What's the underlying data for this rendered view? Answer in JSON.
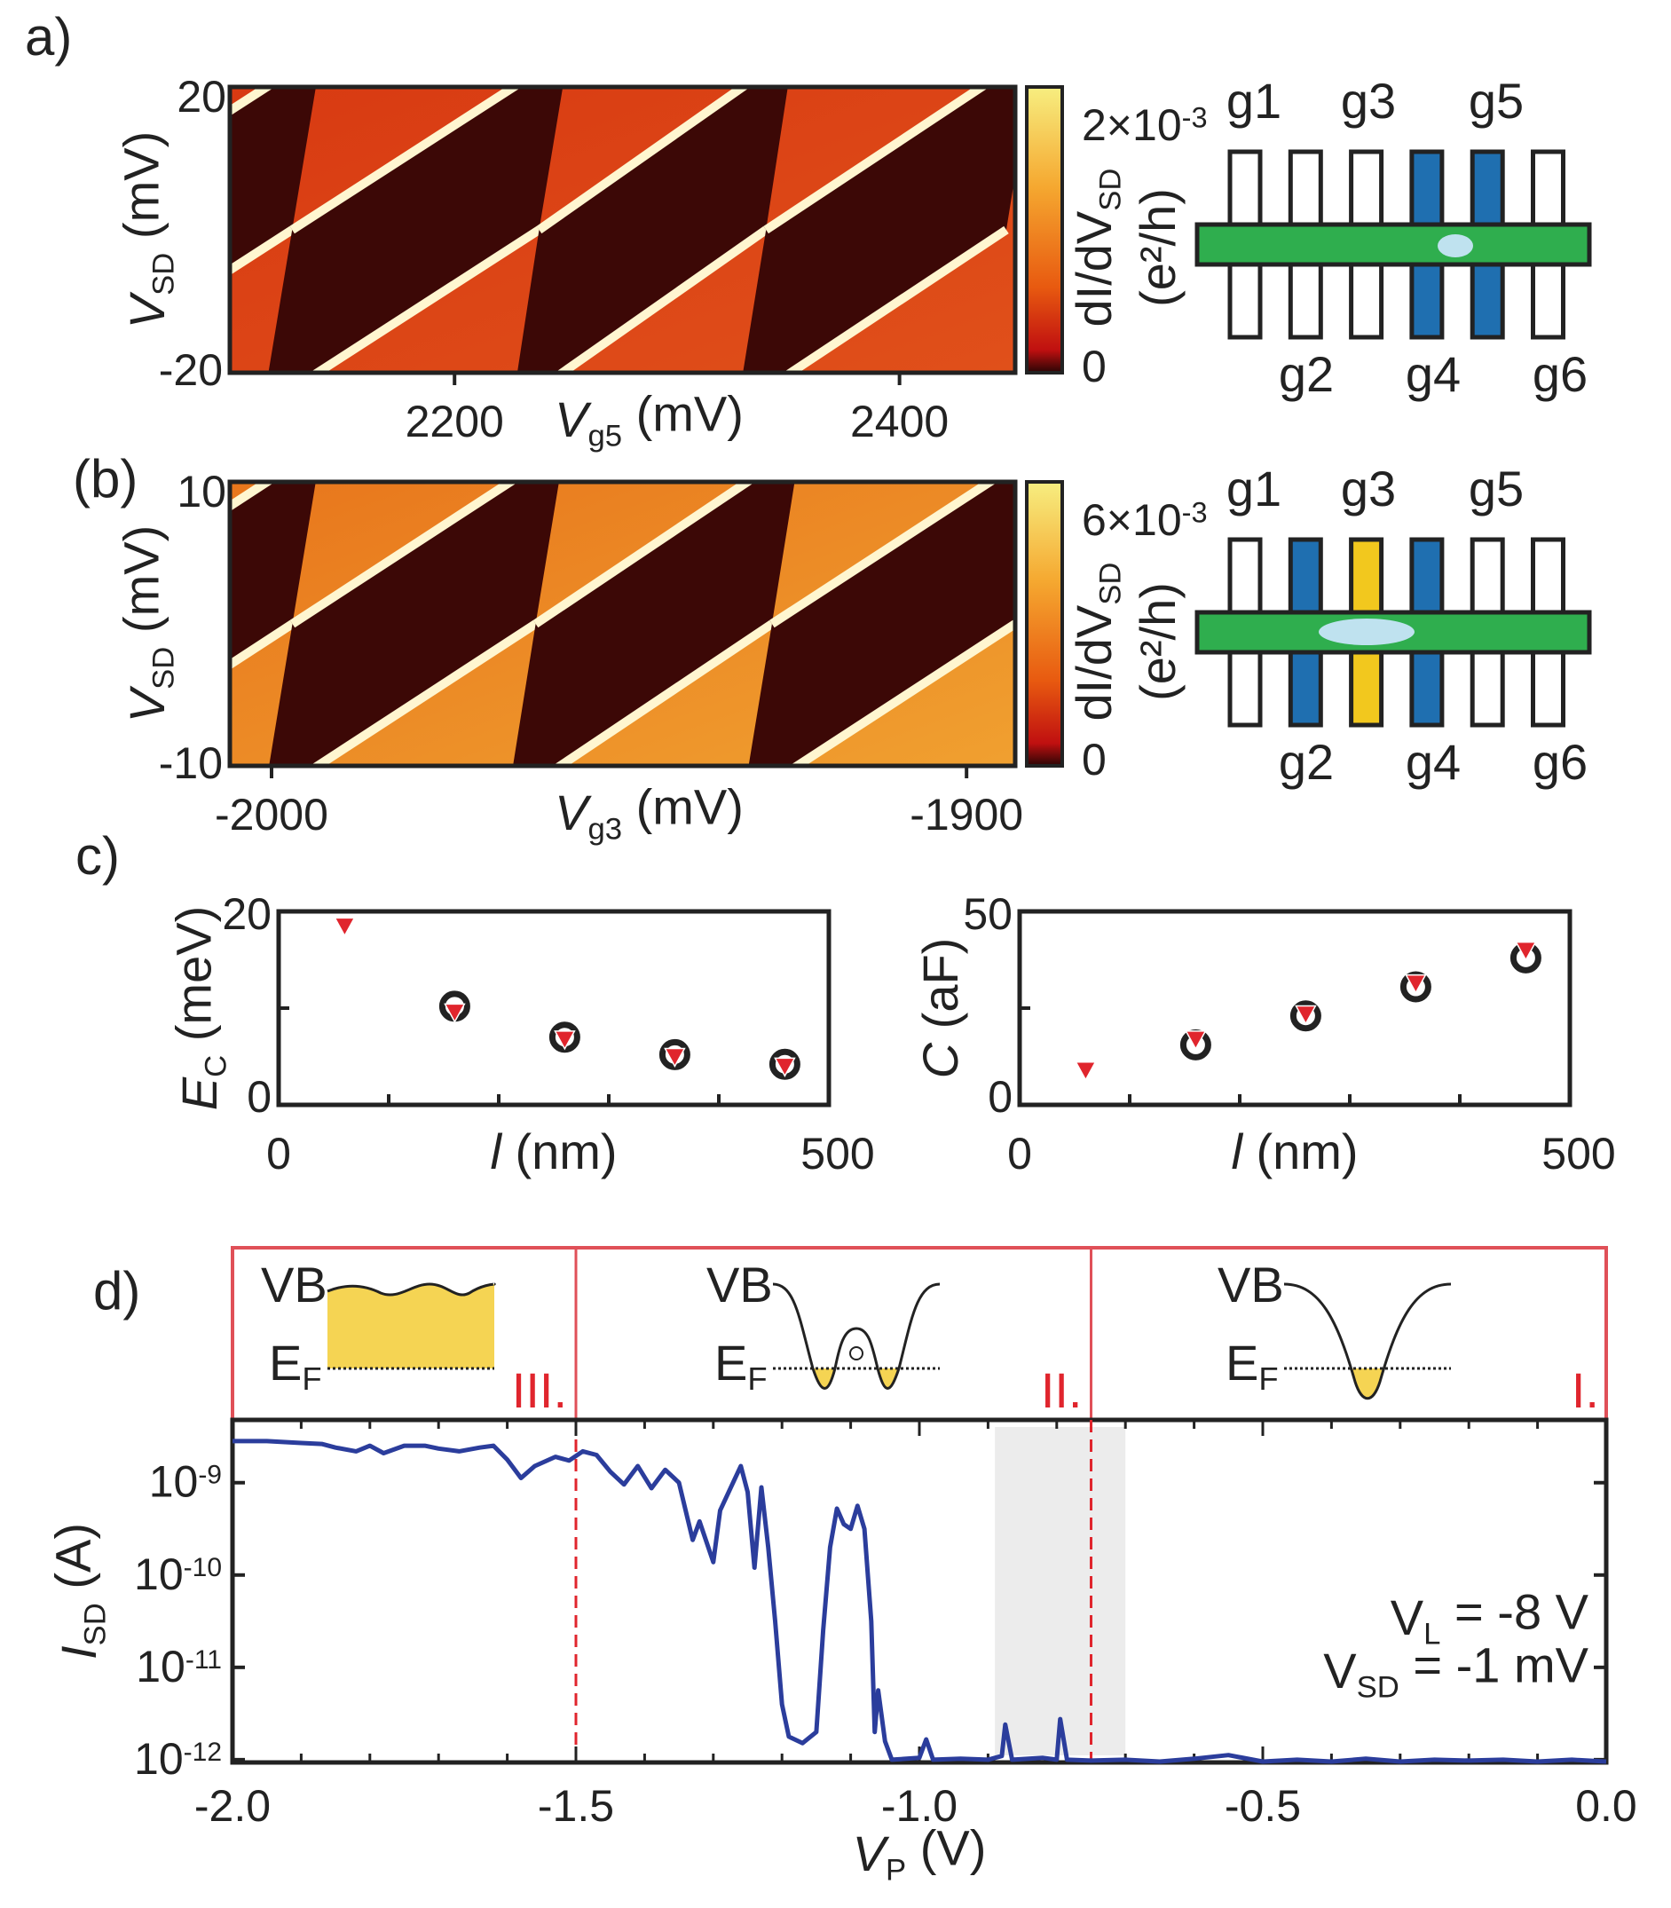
{
  "panels": {
    "a": "a)",
    "b": "(b)",
    "c": "c)",
    "d": "d)"
  },
  "chart_data": [
    {
      "id": "a",
      "type": "heatmap",
      "xlabel": {
        "main": "V",
        "sub": "g5",
        "unit": " (mV)"
      },
      "ylabel": {
        "main": "V",
        "sub": "SD",
        "unit": " (mV)"
      },
      "xlim": [
        2099,
        2452
      ],
      "ylim": [
        -20,
        20
      ],
      "xticks": [
        2200,
        2400
      ],
      "xtick_labels": [
        "2200",
        "2400"
      ],
      "yticks": [
        -20,
        20
      ],
      "ytick_labels": [
        "-20",
        "20"
      ],
      "degeneracy_points_mV": [
        2127,
        2238,
        2340,
        2448
      ],
      "colorbar": {
        "max_label": "2×10",
        "max_exp": "-3",
        "min_label": "0",
        "label_main": "dI/dV",
        "label_sub": "SD",
        "label_unit": "(e²/h)",
        "range": [
          0,
          0.002
        ]
      },
      "gates": {
        "labels_top": [
          "g1",
          "g3",
          "g5"
        ],
        "labels_bottom": [
          "g2",
          "g4",
          "g6"
        ],
        "active": {
          "g4": "#1f6fb0",
          "g5": "#1f6fb0"
        }
      }
    },
    {
      "id": "b",
      "type": "heatmap",
      "xlabel": {
        "main": "V",
        "sub": "g3",
        "unit": " (mV)"
      },
      "ylabel": {
        "main": "V",
        "sub": "SD",
        "unit": " (mV)"
      },
      "xlim": [
        -2006,
        -1893
      ],
      "ylim": [
        -10,
        10
      ],
      "xticks": [
        -2000,
        -1900
      ],
      "xtick_labels": [
        "-2000",
        "-1900"
      ],
      "yticks": [
        -10,
        10
      ],
      "ytick_labels": [
        "-10",
        "10"
      ],
      "degeneracy_points_mV": [
        -1997,
        -1962,
        -1928,
        -1893
      ],
      "colorbar": {
        "max_label": "6×10",
        "max_exp": "-3",
        "min_label": "0",
        "label_main": "dI/dV",
        "label_sub": "SD",
        "label_unit": "(e²/h)",
        "range": [
          0,
          0.006
        ]
      },
      "gates": {
        "labels_top": [
          "g1",
          "g3",
          "g5"
        ],
        "labels_bottom": [
          "g2",
          "g4",
          "g6"
        ],
        "active": {
          "g2": "#1f6fb0",
          "g3": "#f2c81e",
          "g4": "#1f6fb0"
        }
      }
    },
    {
      "id": "c-left",
      "type": "scatter",
      "xlabel": {
        "main": "l",
        "unit": " (nm)"
      },
      "ylabel": {
        "main": "E",
        "sub": "C",
        "unit": " (meV)"
      },
      "xlim": [
        0,
        500
      ],
      "ylim": [
        0,
        20
      ],
      "xtick_labels": [
        "0",
        "500"
      ],
      "ytick_labels": [
        "0",
        "20"
      ],
      "series": [
        {
          "name": "triangles",
          "marker": "triangle-down",
          "color": "#e0252d",
          "x": [
            60,
            160,
            260,
            360,
            460
          ],
          "y": [
            18.5,
            9.6,
            6.8,
            5.0,
            4.0
          ]
        },
        {
          "name": "circles",
          "marker": "circle",
          "color": "#222222",
          "x": [
            160,
            260,
            360,
            460
          ],
          "y": [
            10.2,
            7.0,
            5.2,
            4.2
          ]
        }
      ]
    },
    {
      "id": "c-right",
      "type": "scatter",
      "xlabel": {
        "main": "l",
        "unit": " (nm)"
      },
      "ylabel": {
        "main": "C",
        "unit": " (aF)"
      },
      "xlim": [
        0,
        500
      ],
      "ylim": [
        0,
        50
      ],
      "xtick_labels": [
        "0",
        "500"
      ],
      "ytick_labels": [
        "0",
        "50"
      ],
      "series": [
        {
          "name": "triangles",
          "marker": "triangle-down",
          "color": "#e0252d",
          "x": [
            60,
            160,
            260,
            360,
            460
          ],
          "y": [
            9,
            17,
            23.5,
            31.5,
            40
          ]
        },
        {
          "name": "circles",
          "marker": "circle",
          "color": "#222222",
          "x": [
            160,
            260,
            360,
            460
          ],
          "y": [
            15.5,
            23,
            30.5,
            38
          ]
        }
      ]
    },
    {
      "id": "d",
      "type": "line",
      "xlabel": {
        "main": "V",
        "sub": "P",
        "unit": " (V)"
      },
      "ylabel": {
        "main": "I",
        "sub": "SD",
        "unit": " (A)"
      },
      "xlim": [
        -2.0,
        0.0
      ],
      "ylim_log10": [
        -12.03,
        -8.32
      ],
      "xticks": [
        -2.0,
        -1.5,
        -1.0,
        -0.5,
        0.0
      ],
      "xtick_labels": [
        "-2.0",
        "-1.5",
        "-1.0",
        "-0.5",
        "0.0"
      ],
      "yticks_log10": [
        -9,
        -10,
        -11,
        -12
      ],
      "ytick_base": "10",
      "ytick_exps": [
        "-9",
        "-10",
        "-11",
        "-12"
      ],
      "dashed_lines": [
        -1.5,
        -0.75
      ],
      "shaded_region": [
        -0.89,
        -0.7
      ],
      "annotations": [
        {
          "main": "V",
          "sub": "L",
          "rest": " = -8 V"
        },
        {
          "main": "V",
          "sub": "SD",
          "rest": " = -1 mV"
        }
      ],
      "regions": [
        {
          "label": "III.",
          "vb": "VB",
          "ef": "E",
          "ef_sub": "F"
        },
        {
          "label": "II.",
          "vb": "VB",
          "ef": "E",
          "ef_sub": "F"
        },
        {
          "label": "I.",
          "vb": "VB",
          "ef": "E",
          "ef_sub": "F"
        }
      ],
      "line_color": "#2b3d9c",
      "series": [
        {
          "name": "I_SD",
          "points": [
            [
              -2.0,
              -8.55
            ],
            [
              -1.95,
              -8.55
            ],
            [
              -1.9,
              -8.57
            ],
            [
              -1.87,
              -8.58
            ],
            [
              -1.85,
              -8.62
            ],
            [
              -1.82,
              -8.66
            ],
            [
              -1.8,
              -8.6
            ],
            [
              -1.78,
              -8.68
            ],
            [
              -1.75,
              -8.6
            ],
            [
              -1.72,
              -8.6
            ],
            [
              -1.7,
              -8.63
            ],
            [
              -1.67,
              -8.66
            ],
            [
              -1.64,
              -8.62
            ],
            [
              -1.62,
              -8.6
            ],
            [
              -1.6,
              -8.75
            ],
            [
              -1.58,
              -8.95
            ],
            [
              -1.56,
              -8.82
            ],
            [
              -1.53,
              -8.72
            ],
            [
              -1.51,
              -8.76
            ],
            [
              -1.49,
              -8.66
            ],
            [
              -1.47,
              -8.7
            ],
            [
              -1.45,
              -8.88
            ],
            [
              -1.43,
              -9.02
            ],
            [
              -1.41,
              -8.82
            ],
            [
              -1.39,
              -9.06
            ],
            [
              -1.37,
              -8.86
            ],
            [
              -1.35,
              -9.0
            ],
            [
              -1.33,
              -9.62
            ],
            [
              -1.32,
              -9.42
            ],
            [
              -1.3,
              -9.86
            ],
            [
              -1.29,
              -9.3
            ],
            [
              -1.27,
              -8.98
            ],
            [
              -1.26,
              -8.82
            ],
            [
              -1.25,
              -9.1
            ],
            [
              -1.24,
              -9.92
            ],
            [
              -1.23,
              -9.05
            ],
            [
              -1.22,
              -9.7
            ],
            [
              -1.21,
              -10.5
            ],
            [
              -1.2,
              -11.4
            ],
            [
              -1.19,
              -11.75
            ],
            [
              -1.17,
              -11.82
            ],
            [
              -1.15,
              -11.7
            ],
            [
              -1.14,
              -10.6
            ],
            [
              -1.13,
              -9.7
            ],
            [
              -1.12,
              -9.28
            ],
            [
              -1.11,
              -9.45
            ],
            [
              -1.1,
              -9.5
            ],
            [
              -1.09,
              -9.25
            ],
            [
              -1.08,
              -9.5
            ],
            [
              -1.07,
              -10.5
            ],
            [
              -1.065,
              -11.7
            ],
            [
              -1.06,
              -11.25
            ],
            [
              -1.05,
              -11.8
            ],
            [
              -1.04,
              -12.0
            ],
            [
              -1.0,
              -11.98
            ],
            [
              -0.99,
              -11.78
            ],
            [
              -0.98,
              -12.0
            ],
            [
              -0.94,
              -11.99
            ],
            [
              -0.9,
              -12.0
            ],
            [
              -0.88,
              -11.96
            ],
            [
              -0.875,
              -11.62
            ],
            [
              -0.865,
              -12.0
            ],
            [
              -0.82,
              -11.98
            ],
            [
              -0.8,
              -12.0
            ],
            [
              -0.795,
              -11.56
            ],
            [
              -0.785,
              -12.0
            ],
            [
              -0.75,
              -12.01
            ],
            [
              -0.7,
              -12.0
            ],
            [
              -0.65,
              -12.02
            ],
            [
              -0.6,
              -11.99
            ],
            [
              -0.55,
              -11.95
            ],
            [
              -0.5,
              -12.02
            ],
            [
              -0.45,
              -12.0
            ],
            [
              -0.4,
              -12.02
            ],
            [
              -0.35,
              -11.99
            ],
            [
              -0.3,
              -12.02
            ],
            [
              -0.25,
              -12.0
            ],
            [
              -0.2,
              -12.01
            ],
            [
              -0.15,
              -12.0
            ],
            [
              -0.1,
              -12.02
            ],
            [
              -0.05,
              -12.0
            ],
            [
              0.0,
              -12.02
            ]
          ]
        }
      ]
    }
  ]
}
